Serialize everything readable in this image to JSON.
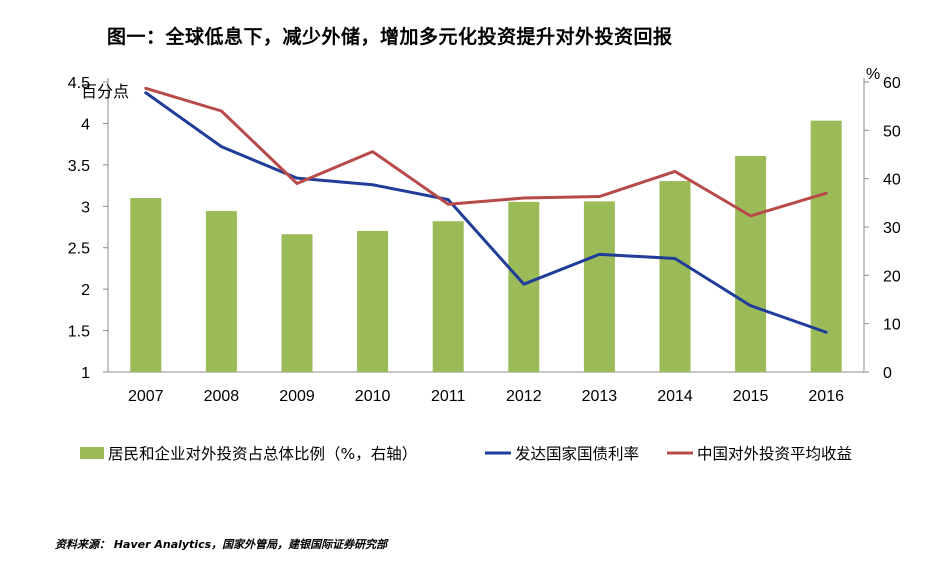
{
  "title": "图一：全球低息下，减少外储，增加多元化投资提升对外投资回报",
  "source": "资料来源： Haver Analytics，国家外管局，建银国际证券研究部",
  "chart_data": {
    "type": "bar",
    "categories": [
      "2007",
      "2008",
      "2009",
      "2010",
      "2011",
      "2012",
      "2013",
      "2014",
      "2015",
      "2016"
    ],
    "left_axis": {
      "label": "百分点",
      "ylim": [
        1,
        4.5
      ],
      "ticks": [
        "4.5",
        "4",
        "3.5",
        "3",
        "2.5",
        "2",
        "1.5",
        "1"
      ]
    },
    "right_axis": {
      "label": "%",
      "ylim": [
        0,
        60
      ],
      "ticks": [
        "60",
        "50",
        "40",
        "30",
        "20",
        "10",
        "0"
      ]
    },
    "series": [
      {
        "name": "居民和企业对外投资占总体比例（%，右轴）",
        "type": "bar",
        "axis": "right",
        "color": "#9BBB59",
        "values": [
          36,
          33.3,
          28.5,
          29.2,
          31.2,
          35.2,
          35.3,
          39.5,
          44.7,
          52
        ]
      },
      {
        "name": "发达国家国债利率",
        "type": "line",
        "axis": "left",
        "color": "#1F3D99",
        "values": [
          4.37,
          3.72,
          3.34,
          3.26,
          3.08,
          2.06,
          2.42,
          2.37,
          1.8,
          1.48
        ]
      },
      {
        "name": "中国对外投资平均收益",
        "type": "line",
        "axis": "right",
        "color": "#B84A4A",
        "values": [
          58.7,
          54,
          39,
          45.6,
          34.7,
          36,
          36.3,
          41.5,
          32.3,
          37
        ]
      }
    ],
    "grid": false,
    "legend": "bottom"
  }
}
